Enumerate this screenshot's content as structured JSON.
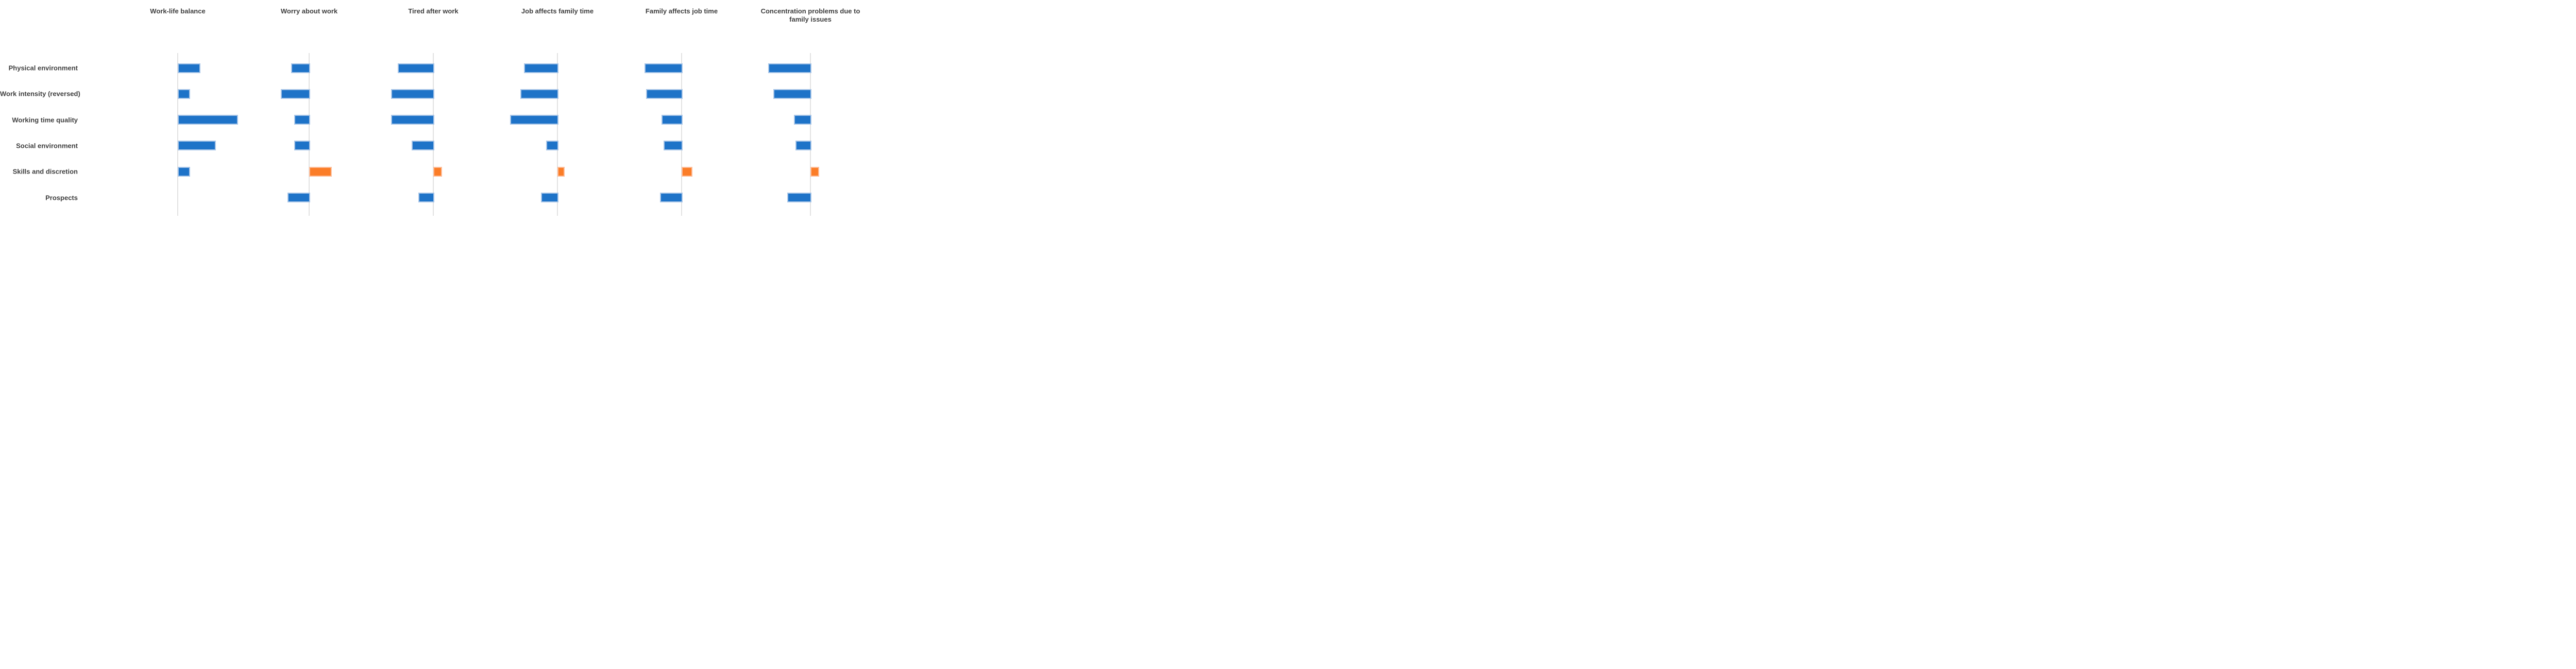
{
  "chart_data": {
    "type": "bar",
    "orientation": "horizontal",
    "title": "",
    "xlabel": "",
    "ylabel": "",
    "grid": false,
    "legend": "none",
    "axis_note": "No numeric axis shown; values are estimated relative association sizes (arbitrary units) read from bar lengths. Positive = bar to the right of the baseline, negative = to the left.",
    "categories": [
      "Physical environment",
      "Work intensity (reversed)",
      "Working time quality",
      "Social environment",
      "Skills and discretion",
      "Prospects"
    ],
    "value_range": [
      -0.34,
      0.34
    ],
    "panels": [
      {
        "title": "Work-life balance",
        "values": [
          0.12,
          0.06,
          0.34,
          0.21,
          0.06,
          0
        ],
        "bar_colors": [
          "blue",
          "blue",
          "blue",
          "blue",
          "blue",
          "blue"
        ]
      },
      {
        "title": "Worry about work",
        "values": [
          -0.1,
          -0.16,
          -0.08,
          -0.08,
          0.12,
          -0.12
        ],
        "bar_colors": [
          "blue",
          "blue",
          "blue",
          "blue",
          "orange",
          "blue"
        ]
      },
      {
        "title": "Tired after work",
        "values": [
          -0.2,
          -0.24,
          -0.24,
          -0.12,
          0.04,
          -0.08
        ],
        "bar_colors": [
          "blue",
          "blue",
          "blue",
          "blue",
          "orange",
          "blue"
        ]
      },
      {
        "title": "Job affects family time",
        "values": [
          -0.19,
          -0.21,
          -0.27,
          -0.06,
          0.03,
          -0.09
        ],
        "bar_colors": [
          "blue",
          "blue",
          "blue",
          "blue",
          "orange",
          "blue"
        ]
      },
      {
        "title": "Family affects job time",
        "values": [
          -0.21,
          -0.2,
          -0.11,
          -0.1,
          0.05,
          -0.12
        ],
        "bar_colors": [
          "blue",
          "blue",
          "blue",
          "blue",
          "orange",
          "blue"
        ]
      },
      {
        "title": "Concentration problems due to family issues",
        "values": [
          -0.24,
          -0.21,
          -0.09,
          -0.08,
          0.04,
          -0.13
        ],
        "bar_colors": [
          "blue",
          "blue",
          "blue",
          "blue",
          "orange",
          "blue"
        ]
      }
    ],
    "palette": {
      "blue": "#1e73c8",
      "blue_border": "#a9c6e8",
      "orange": "#fb7d28",
      "orange_border": "#fdbe9b",
      "axis_line": "#e2e2e2",
      "text": "#3f3f3f"
    }
  }
}
